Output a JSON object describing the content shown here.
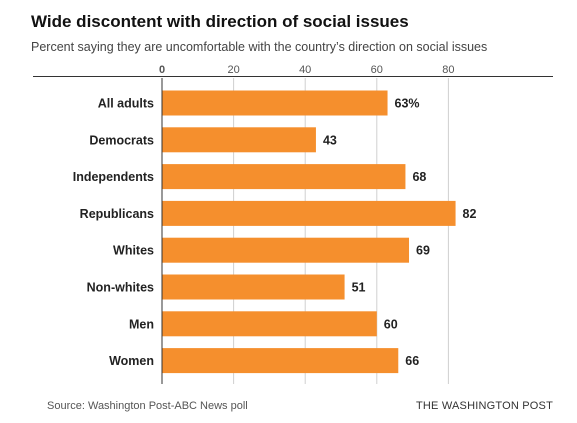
{
  "title": "Wide discontent with direction of social issues",
  "subtitle": "Percent saying they are uncomfortable with the country’s direction on social issues",
  "source": "Source: Washington Post-ABC News poll",
  "brand": "THE WASHINGTON POST",
  "colors": {
    "bar": "#F58F2D",
    "grid": "#d0d0d0",
    "axis": "#333333"
  },
  "chart_data": {
    "type": "bar",
    "orientation": "horizontal",
    "categories": [
      "All adults",
      "Democrats",
      "Independents",
      "Republicans",
      "Whites",
      "Non-whites",
      "Men",
      "Women"
    ],
    "values": [
      63,
      43,
      68,
      82,
      69,
      51,
      60,
      66
    ],
    "value_labels": [
      "63%",
      "43",
      "68",
      "82",
      "69",
      "51",
      "60",
      "66"
    ],
    "x_ticks": [
      0,
      20,
      40,
      60,
      80
    ],
    "xlim": [
      0,
      100
    ],
    "grid": true
  }
}
